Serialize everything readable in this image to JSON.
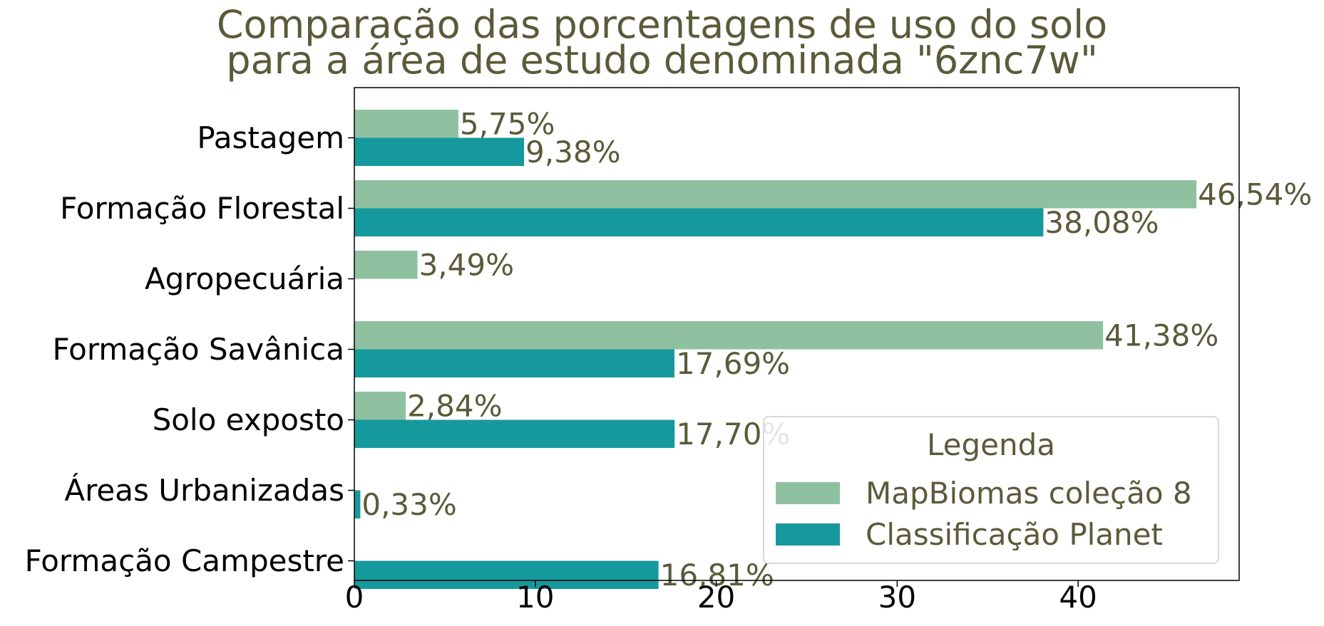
{
  "chart_data": {
    "type": "bar",
    "orientation": "horizontal",
    "title": "Comparação das porcentagens de uso do solo\npara a área de estudo denominada \"6znc7w\"",
    "categories": [
      "Pastagem",
      "Formação Florestal",
      "Agropecuária",
      "Formação Savânica",
      "Solo exposto",
      "Áreas Urbanizadas",
      "Formação Campestre"
    ],
    "series": [
      {
        "name": "MapBiomas coleção 8",
        "color": "#8fc1a0",
        "values": [
          5.75,
          46.54,
          3.49,
          41.38,
          2.84,
          null,
          null
        ],
        "labels": [
          "5,75%",
          "46,54%",
          "3,49%",
          "41,38%",
          "2,84%",
          "",
          ""
        ]
      },
      {
        "name": "Classificação Planet",
        "color": "#16999d",
        "values": [
          9.38,
          38.08,
          null,
          17.69,
          17.7,
          0.33,
          16.81
        ],
        "labels": [
          "9,38%",
          "38,08%",
          "",
          "17,69%",
          "17,70%",
          "0,33%",
          "16,81%"
        ]
      }
    ],
    "xticks": [
      0,
      10,
      20,
      30,
      40
    ],
    "xlim": [
      0,
      48.9
    ],
    "xlabel": "",
    "ylabel": "",
    "grid": false,
    "legend": {
      "title": "Legenda",
      "position": "lower-right"
    },
    "text_color": "#5b5a3a"
  }
}
